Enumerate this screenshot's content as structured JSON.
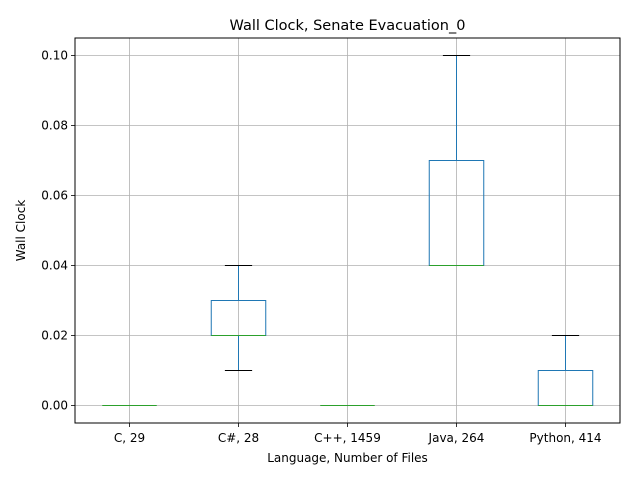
{
  "chart_data": {
    "type": "boxplot",
    "title": "Wall Clock, Senate Evacuation_0",
    "xlabel": "Language, Number of Files",
    "ylabel": "Wall Clock",
    "ylim": [
      -0.005,
      0.105
    ],
    "yticks": [
      0.0,
      0.02,
      0.04,
      0.06,
      0.08,
      0.1
    ],
    "ytick_labels": [
      "0.00",
      "0.02",
      "0.04",
      "0.06",
      "0.08",
      "0.10"
    ],
    "grid": true,
    "categories": [
      "C, 29",
      "C#, 28",
      "C++, 1459",
      "Java, 264",
      "Python, 414"
    ],
    "boxes": [
      {
        "whisker_low": 0.0,
        "q1": 0.0,
        "median": 0.0,
        "q3": 0.0,
        "whisker_high": 0.0
      },
      {
        "whisker_low": 0.01,
        "q1": 0.02,
        "median": 0.02,
        "q3": 0.03,
        "whisker_high": 0.04
      },
      {
        "whisker_low": 0.0,
        "q1": 0.0,
        "median": 0.0,
        "q3": 0.0,
        "whisker_high": 0.0
      },
      {
        "whisker_low": 0.04,
        "q1": 0.04,
        "median": 0.04,
        "q3": 0.07,
        "whisker_high": 0.1
      },
      {
        "whisker_low": 0.0,
        "q1": 0.0,
        "median": 0.0,
        "q3": 0.01,
        "whisker_high": 0.02
      }
    ],
    "colors": {
      "box": "#1f77b4",
      "median": "#2ca02c",
      "whisker_cap": "#000000",
      "grid": "#b0b0b0"
    }
  }
}
